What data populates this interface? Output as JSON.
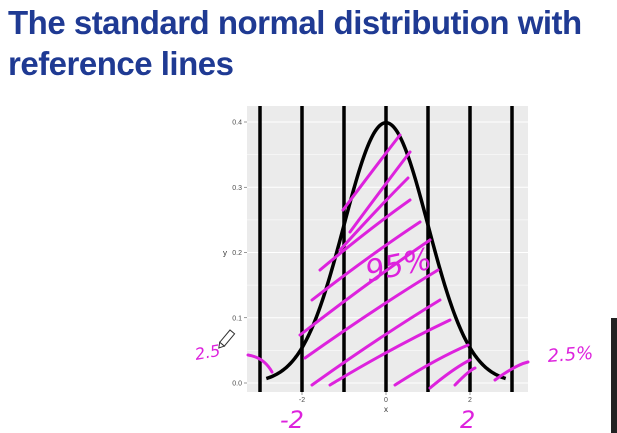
{
  "slide": {
    "title": "The standard normal distribution with reference lines",
    "title_color": "#1f3a93"
  },
  "chart_data": {
    "type": "line",
    "function": "standard normal density",
    "mean": 0,
    "sd": 1,
    "x_range": [
      -3,
      3
    ],
    "xlabel": "x",
    "ylabel": "y",
    "ylim": [
      0,
      0.4
    ],
    "x_ticks": [
      -2,
      0,
      2
    ],
    "y_ticks": [
      0.0,
      0.1,
      0.2,
      0.3,
      0.4
    ],
    "reference_lines_x": [
      -3,
      -2,
      -1,
      0,
      1,
      2,
      3
    ],
    "grid": true,
    "panel_color": "#ebebeb",
    "curve_color": "#000000",
    "annotation_color": "#dd22dd",
    "annotations": {
      "center": "95%",
      "left_tail": "2.5",
      "right_tail": "2.5%",
      "left_mark": "-2",
      "right_mark": "2"
    }
  }
}
